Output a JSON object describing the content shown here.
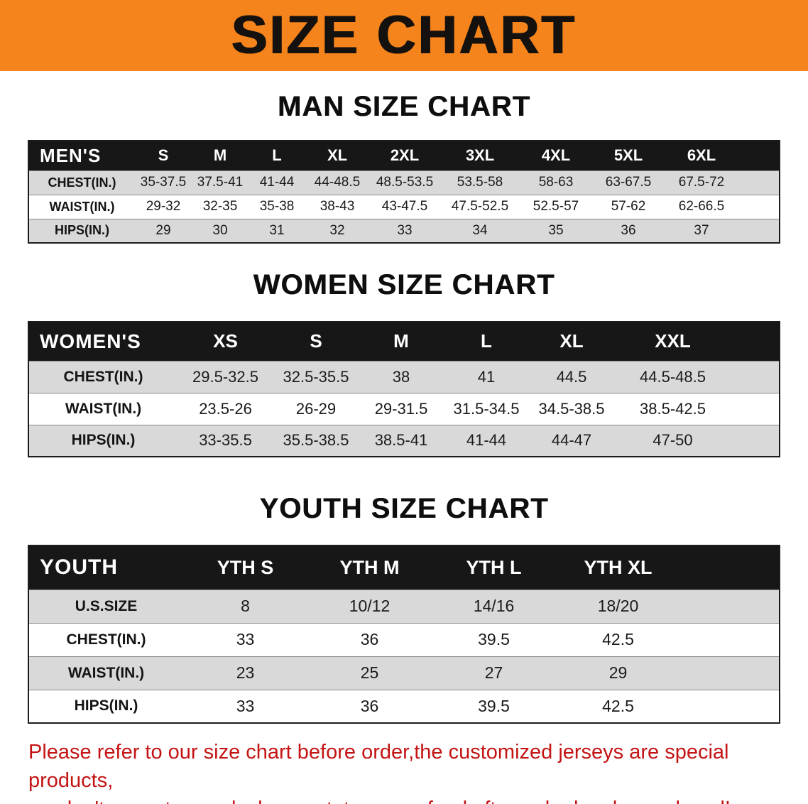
{
  "banner": {
    "title": "SIZE CHART"
  },
  "colors": {
    "banner_bg": "#f6841c",
    "table_header_bg": "#171717",
    "stripe_bg": "#d9d9d9",
    "notice_color": "#c41414"
  },
  "sections": [
    {
      "heading": "MAN SIZE CHART",
      "table": {
        "header_label": "MEN'S",
        "columns": [
          "S",
          "M",
          "L",
          "XL",
          "2XL",
          "3XL",
          "4XL",
          "5XL",
          "6XL"
        ],
        "rows": [
          {
            "label": "CHEST(IN.)",
            "values": [
              "35-37.5",
              "37.5-41",
              "41-44",
              "44-48.5",
              "48.5-53.5",
              "53.5-58",
              "58-63",
              "63-67.5",
              "67.5-72"
            ]
          },
          {
            "label": "WAIST(IN.)",
            "values": [
              "29-32",
              "32-35",
              "35-38",
              "38-43",
              "43-47.5",
              "47.5-52.5",
              "52.5-57",
              "57-62",
              "62-66.5"
            ]
          },
          {
            "label": "HIPS(IN.)",
            "values": [
              "29",
              "30",
              "31",
              "32",
              "33",
              "34",
              "35",
              "36",
              "37"
            ]
          }
        ]
      }
    },
    {
      "heading": "WOMEN SIZE CHART",
      "table": {
        "header_label": "WOMEN'S",
        "columns": [
          "XS",
          "S",
          "M",
          "L",
          "XL",
          "XXL"
        ],
        "rows": [
          {
            "label": "CHEST(IN.)",
            "values": [
              "29.5-32.5",
              "32.5-35.5",
              "38",
              "41",
              "44.5",
              "44.5-48.5"
            ]
          },
          {
            "label": "WAIST(IN.)",
            "values": [
              "23.5-26",
              "26-29",
              "29-31.5",
              "31.5-34.5",
              "34.5-38.5",
              "38.5-42.5"
            ]
          },
          {
            "label": "HIPS(IN.)",
            "values": [
              "33-35.5",
              "35.5-38.5",
              "38.5-41",
              "41-44",
              "44-47",
              "47-50"
            ]
          }
        ]
      }
    },
    {
      "heading": "YOUTH SIZE CHART",
      "table": {
        "header_label": "YOUTH",
        "columns": [
          "YTH S",
          "YTH M",
          "YTH L",
          "YTH XL"
        ],
        "rows": [
          {
            "label": "U.S.SIZE",
            "values": [
              "8",
              "10/12",
              "14/16",
              "18/20"
            ]
          },
          {
            "label": "CHEST(IN.)",
            "values": [
              "33",
              "36",
              "39.5",
              "42.5"
            ]
          },
          {
            "label": "WAIST(IN.)",
            "values": [
              "23",
              "25",
              "27",
              "29"
            ]
          },
          {
            "label": "HIPS(IN.)",
            "values": [
              "33",
              "36",
              "39.5",
              "42.5"
            ]
          }
        ]
      }
    }
  ],
  "footer": {
    "lines": [
      "Please refer to our size chart before order,the customized jerseys are special products,",
      "we don't accept cancel, change, teturn or refund after order has been placed!"
    ]
  }
}
